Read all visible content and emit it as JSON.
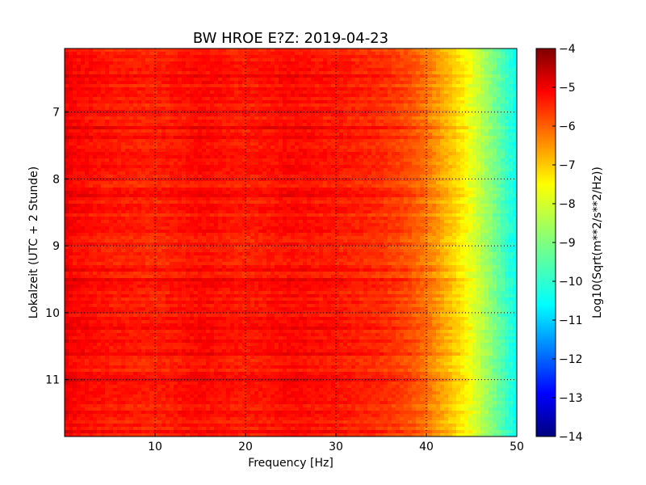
{
  "chart_data": {
    "type": "heatmap",
    "title": "BW HROE E?Z: 2019-04-23",
    "xlabel": "Frequency [Hz]",
    "ylabel": "Lokalzeit (UTC + 2 Stunde)",
    "xlim": [
      0,
      50
    ],
    "ylim": [
      11.85,
      6.05
    ],
    "y_inverted": true,
    "x_ticks": [
      10,
      20,
      30,
      40,
      50
    ],
    "y_ticks": [
      7,
      8,
      9,
      10,
      11
    ],
    "grid": "dotted",
    "colorscale": "jet",
    "colorbar": {
      "label": "Log10(Sqrt(m**2/s**2/Hz))",
      "range": [
        -14,
        -4
      ],
      "ticks": [
        -4,
        -5,
        -6,
        -7,
        -8,
        -9,
        -10,
        -11,
        -12,
        -13,
        -14
      ]
    },
    "value_profile": {
      "frequency_hz": [
        0,
        1,
        5,
        10,
        15,
        20,
        25,
        30,
        35,
        38,
        40,
        42,
        44,
        46,
        48,
        50
      ],
      "log10_amplitude": [
        -5.1,
        -5.3,
        -5.5,
        -5.6,
        -5.35,
        -5.55,
        -5.35,
        -5.5,
        -5.7,
        -6.0,
        -6.4,
        -7.0,
        -7.6,
        -8.4,
        -9.3,
        -10.2
      ]
    }
  }
}
